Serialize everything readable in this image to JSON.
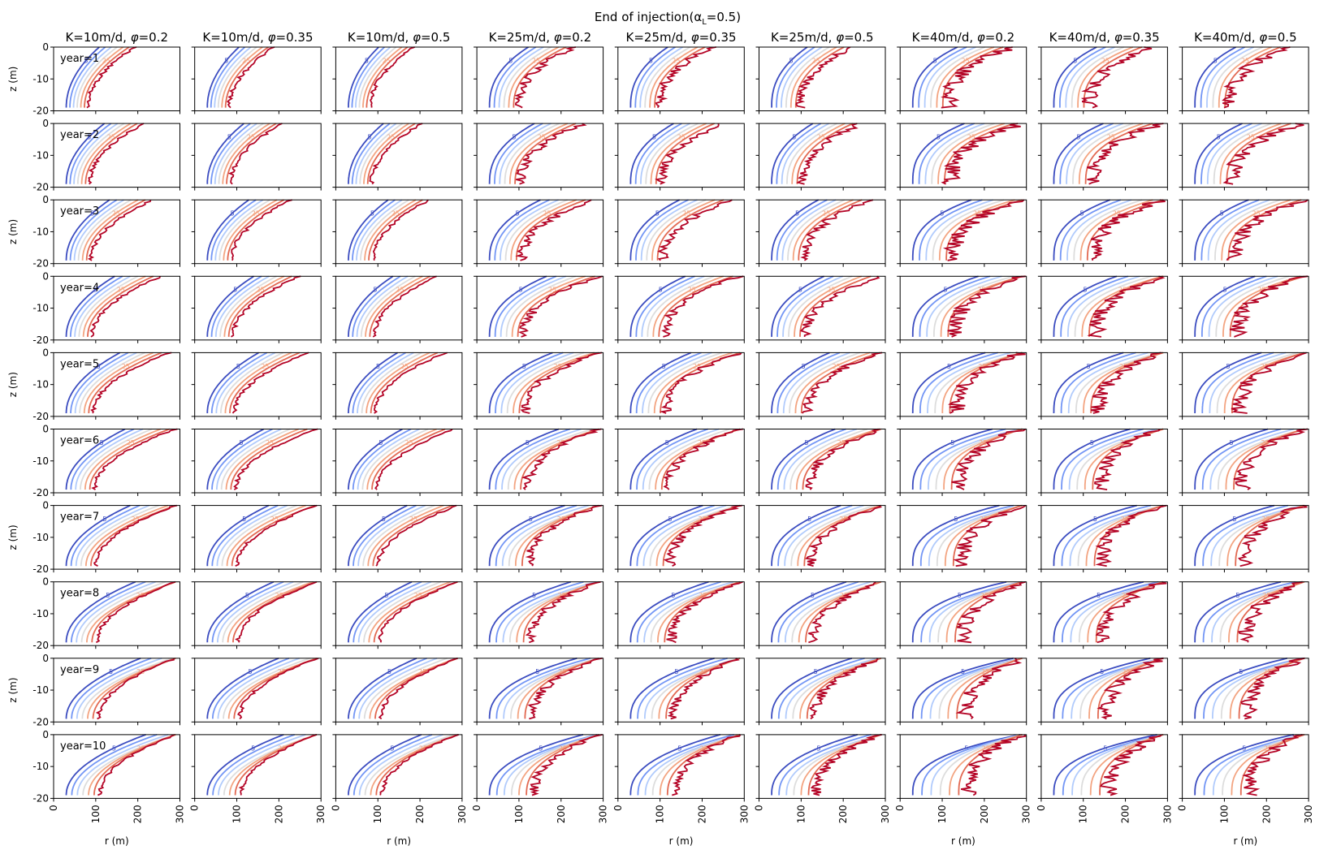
{
  "figure": {
    "suptitle": "End of injection(α",
    "suptitle_sub": "L",
    "suptitle_tail": "=0.5)"
  },
  "chart_data": {
    "type": "contour",
    "grid": {
      "rows": 10,
      "cols": 9
    },
    "xlabel": "r (m)",
    "ylabel": "z (m)",
    "xlim": [
      0,
      300
    ],
    "ylim": [
      -20,
      0
    ],
    "yticks": [
      "0",
      "-10",
      "-20"
    ],
    "xtick_labels_by_col": [
      [
        "0",
        "100",
        "200",
        "300"
      ],
      [
        "0",
        "100",
        "200",
        "300"
      ],
      [
        "0",
        "100",
        "200",
        "300"
      ],
      [
        "0",
        "100",
        "200",
        "300"
      ],
      [
        "0",
        "100",
        "200",
        "300"
      ],
      [
        "0",
        "100",
        "200",
        "300"
      ],
      [
        "0",
        "100",
        "200",
        "300"
      ],
      [
        "0",
        "100",
        "200",
        "300"
      ],
      [
        "0",
        "100",
        "200",
        "300"
      ]
    ],
    "columns": [
      {
        "pre": "K=10m/d, ",
        "phi": "0.2",
        "K": 10,
        "phi_v": 0.2
      },
      {
        "pre": "K=10m/d, ",
        "phi": "0.35",
        "K": 10,
        "phi_v": 0.35
      },
      {
        "pre": "K=10m/d, ",
        "phi": "0.5",
        "K": 10,
        "phi_v": 0.5
      },
      {
        "pre": "K=25m/d, ",
        "phi": "0.2",
        "K": 25,
        "phi_v": 0.2
      },
      {
        "pre": "K=25m/d, ",
        "phi": "0.35",
        "K": 25,
        "phi_v": 0.35
      },
      {
        "pre": "K=25m/d, ",
        "phi": "0.5",
        "K": 25,
        "phi_v": 0.5
      },
      {
        "pre": "K=40m/d, ",
        "phi": "0.2",
        "K": 40,
        "phi_v": 0.2
      },
      {
        "pre": "K=40m/d, ",
        "phi": "0.35",
        "K": 40,
        "phi_v": 0.35
      },
      {
        "pre": "K=40m/d, ",
        "phi": "0.5",
        "K": 40,
        "phi_v": 0.5
      }
    ],
    "row_labels": [
      "year=1",
      "year=2",
      "year=3",
      "year=4",
      "year=5",
      "year=6",
      "year=7",
      "year=8",
      "year=9",
      "year=10"
    ],
    "levels": [
      {
        "value": 5,
        "color": "#3b4cc0",
        "label": "5"
      },
      {
        "value": 10,
        "color": "#7396f5",
        "label": ""
      },
      {
        "value": 15,
        "color": "#b1cbfc",
        "label": ""
      },
      {
        "value": 20,
        "color": "#dddddd",
        "label": ""
      },
      {
        "value": 25,
        "color": "#f3a481",
        "label": "25"
      },
      {
        "value": 30,
        "color": "#e26952",
        "label": ""
      },
      {
        "value": 35,
        "color": "#b40426",
        "label": ""
      }
    ]
  }
}
